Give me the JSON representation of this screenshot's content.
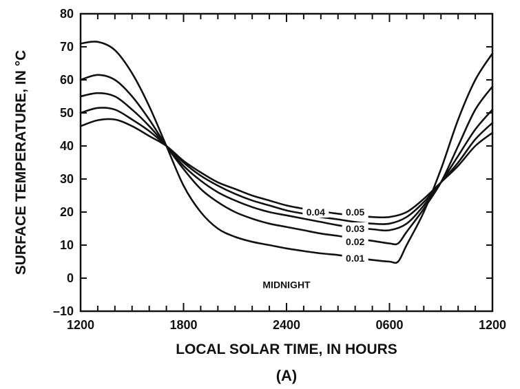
{
  "chart_data": {
    "type": "line",
    "title": "",
    "subtitle": "(A)",
    "xlabel": "LOCAL SOLAR TIME, IN HOURS",
    "ylabel": "SURFACE TEMPERATURE, IN °C",
    "x_unit": "hours elapsed after 1200",
    "xlim": [
      0,
      24
    ],
    "ylim": [
      -10,
      80
    ],
    "x_ticks": [
      {
        "value": 0,
        "label": "1200"
      },
      {
        "value": 6,
        "label": "1800"
      },
      {
        "value": 12,
        "label": "2400"
      },
      {
        "value": 18,
        "label": "0600"
      },
      {
        "value": 24,
        "label": "1200"
      }
    ],
    "y_ticks": [
      {
        "value": -10,
        "label": "–10"
      },
      {
        "value": 0,
        "label": "0"
      },
      {
        "value": 10,
        "label": "10"
      },
      {
        "value": 20,
        "label": "20"
      },
      {
        "value": 30,
        "label": "30"
      },
      {
        "value": 40,
        "label": "40"
      },
      {
        "value": 50,
        "label": "50"
      },
      {
        "value": 60,
        "label": "60"
      },
      {
        "value": 70,
        "label": "70"
      },
      {
        "value": 80,
        "label": "80"
      }
    ],
    "grid": false,
    "annotations": [
      {
        "text": "MIDNIGHT",
        "x": 12,
        "y": -2
      }
    ],
    "series": [
      {
        "name": "0.01",
        "label_at": {
          "x": 16,
          "y": 6
        },
        "points": [
          [
            0,
            71
          ],
          [
            1,
            71.5
          ],
          [
            2,
            69
          ],
          [
            3,
            62
          ],
          [
            4,
            52
          ],
          [
            5,
            40
          ],
          [
            6,
            28
          ],
          [
            7,
            20
          ],
          [
            8,
            15
          ],
          [
            9,
            12.5
          ],
          [
            10,
            11
          ],
          [
            11,
            10
          ],
          [
            12,
            9
          ],
          [
            13,
            8.2
          ],
          [
            14,
            7.5
          ],
          [
            15,
            7
          ],
          [
            16,
            6.2
          ],
          [
            17,
            5.5
          ],
          [
            18,
            5
          ],
          [
            18.5,
            5
          ],
          [
            19,
            10
          ],
          [
            20,
            20
          ],
          [
            21,
            33
          ],
          [
            22,
            48
          ],
          [
            23,
            60
          ],
          [
            24,
            68
          ]
        ]
      },
      {
        "name": "0.02",
        "label_at": {
          "x": 16,
          "y": 11
        },
        "points": [
          [
            0,
            60
          ],
          [
            1,
            61.5
          ],
          [
            2,
            60
          ],
          [
            3,
            55
          ],
          [
            4,
            48
          ],
          [
            5,
            40
          ],
          [
            6,
            33
          ],
          [
            7,
            27
          ],
          [
            8,
            23
          ],
          [
            9,
            20
          ],
          [
            10,
            18
          ],
          [
            11,
            16.5
          ],
          [
            12,
            15.5
          ],
          [
            13,
            14.5
          ],
          [
            14,
            13.5
          ],
          [
            15,
            12.8
          ],
          [
            16,
            12
          ],
          [
            17,
            11.3
          ],
          [
            18,
            10.5
          ],
          [
            18.5,
            10.5
          ],
          [
            19,
            14
          ],
          [
            20,
            21
          ],
          [
            21,
            29
          ],
          [
            22,
            40
          ],
          [
            23,
            51
          ],
          [
            24,
            58
          ]
        ]
      },
      {
        "name": "0.03",
        "label_at": {
          "x": 16,
          "y": 15
        },
        "points": [
          [
            0,
            55
          ],
          [
            1,
            56
          ],
          [
            2,
            55
          ],
          [
            3,
            51
          ],
          [
            4,
            46
          ],
          [
            5,
            40
          ],
          [
            6,
            34
          ],
          [
            7,
            29.5
          ],
          [
            8,
            26
          ],
          [
            9,
            23.5
          ],
          [
            10,
            21.5
          ],
          [
            11,
            20
          ],
          [
            12,
            19
          ],
          [
            13,
            18
          ],
          [
            14,
            17
          ],
          [
            15,
            16
          ],
          [
            16,
            15.3
          ],
          [
            17,
            14.8
          ],
          [
            18,
            14.5
          ],
          [
            19,
            16.5
          ],
          [
            20,
            22
          ],
          [
            21,
            29
          ],
          [
            22,
            37
          ],
          [
            23,
            45
          ],
          [
            24,
            51
          ]
        ]
      },
      {
        "name": "0.04",
        "label_at": {
          "x": 13.7,
          "y": 20
        },
        "points": [
          [
            0,
            50
          ],
          [
            1,
            51.5
          ],
          [
            2,
            51
          ],
          [
            3,
            48
          ],
          [
            4,
            44.5
          ],
          [
            5,
            40
          ],
          [
            6,
            35
          ],
          [
            7,
            31
          ],
          [
            8,
            28
          ],
          [
            9,
            25.5
          ],
          [
            10,
            23.5
          ],
          [
            11,
            22
          ],
          [
            12,
            20.5
          ],
          [
            13,
            19.5
          ],
          [
            14,
            18.5
          ],
          [
            15,
            17.8
          ],
          [
            16,
            17
          ],
          [
            17,
            16.5
          ],
          [
            18,
            16.5
          ],
          [
            19,
            18.5
          ],
          [
            20,
            23
          ],
          [
            21,
            29
          ],
          [
            22,
            35
          ],
          [
            23,
            42
          ],
          [
            24,
            47
          ]
        ]
      },
      {
        "name": "0.05",
        "label_at": {
          "x": 16,
          "y": 20
        },
        "points": [
          [
            0,
            46
          ],
          [
            1,
            47.8
          ],
          [
            2,
            48
          ],
          [
            3,
            46
          ],
          [
            4,
            43
          ],
          [
            5,
            40
          ],
          [
            6,
            35.5
          ],
          [
            7,
            32
          ],
          [
            8,
            29
          ],
          [
            9,
            27
          ],
          [
            10,
            25
          ],
          [
            11,
            23.5
          ],
          [
            12,
            22
          ],
          [
            13,
            21
          ],
          [
            14,
            20.2
          ],
          [
            15,
            19.5
          ],
          [
            16,
            19
          ],
          [
            17,
            18.5
          ],
          [
            18,
            18.5
          ],
          [
            19,
            20
          ],
          [
            20,
            24
          ],
          [
            21,
            29
          ],
          [
            22,
            34
          ],
          [
            23,
            40
          ],
          [
            24,
            44
          ]
        ]
      }
    ]
  }
}
